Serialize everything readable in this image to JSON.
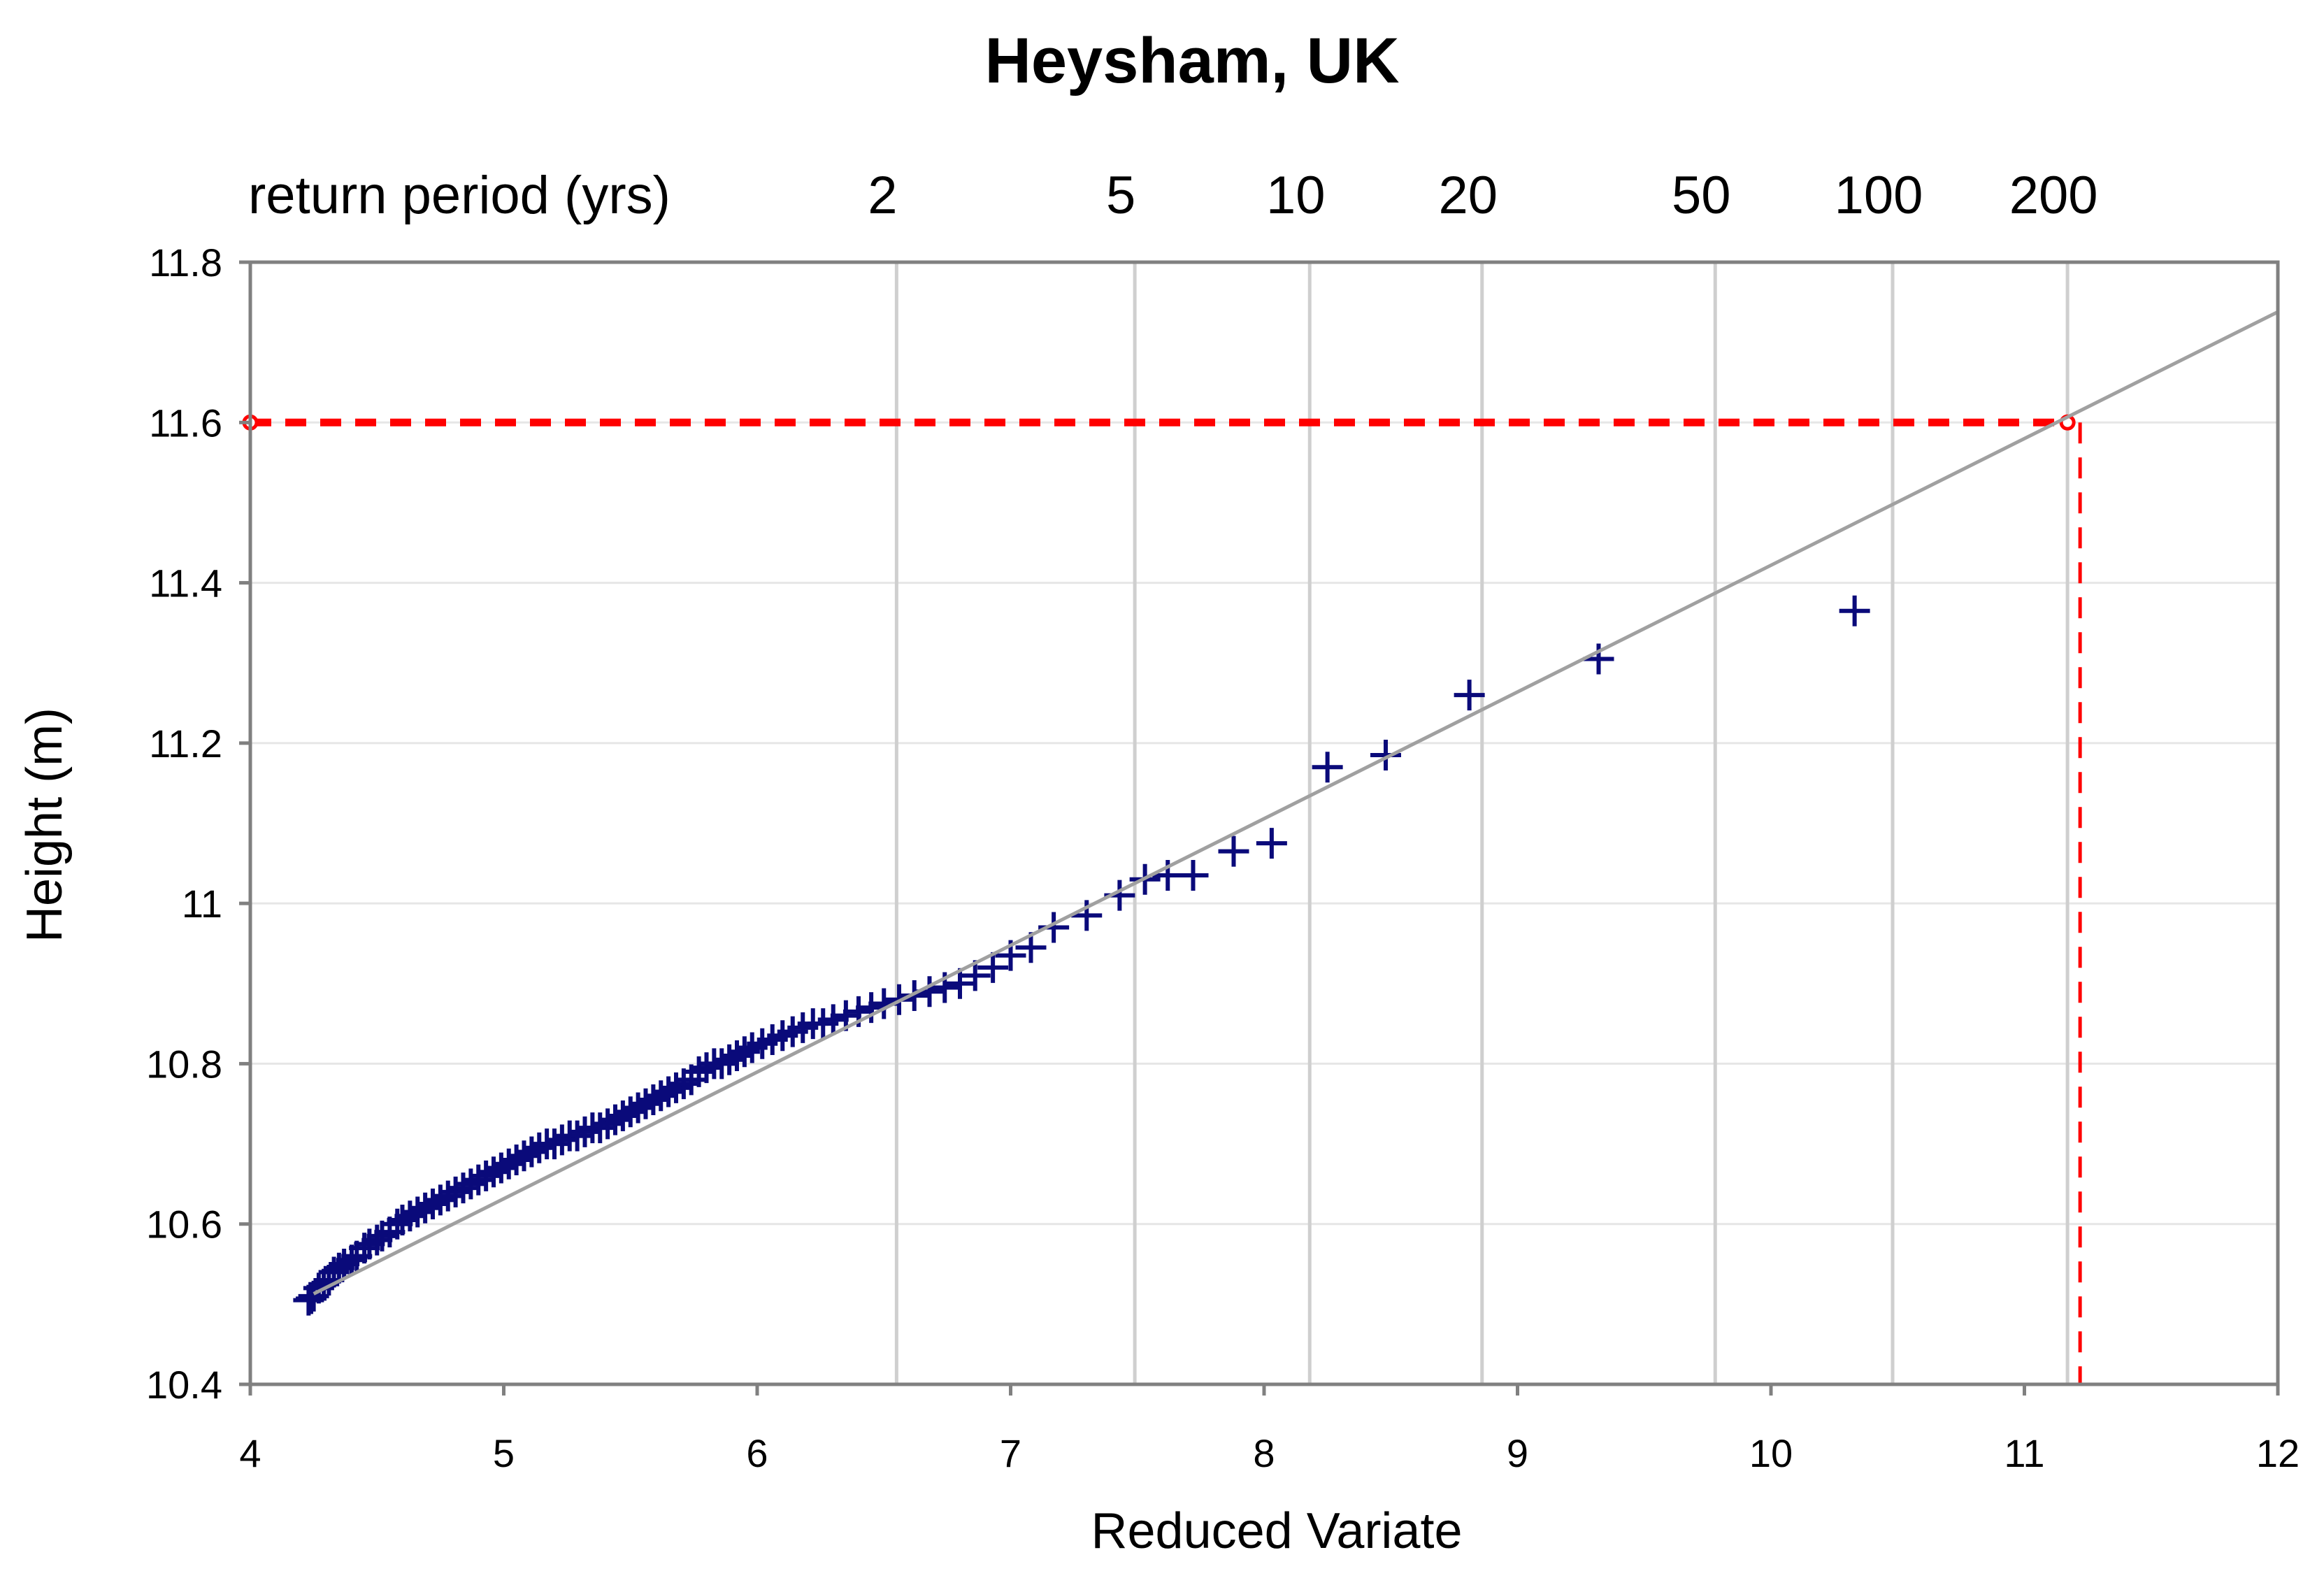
{
  "chart_data": {
    "type": "scatter",
    "title": "Heysham, UK",
    "xlabel": "Reduced Variate",
    "ylabel": "Height (m)",
    "xlim": [
      4,
      12
    ],
    "ylim": [
      10.4,
      11.8
    ],
    "x_ticks": [
      4,
      5,
      6,
      7,
      8,
      9,
      10,
      11,
      12
    ],
    "y_ticks": [
      10.4,
      10.6,
      10.8,
      11,
      11.2,
      11.4,
      11.6,
      11.8
    ],
    "y_tick_labels": [
      "10.4",
      "10.6",
      "10.8",
      "11",
      "11.2",
      "11.4",
      "11.6",
      "11.8"
    ],
    "grid": "horizontal major gridlines",
    "legend": "none",
    "colors": {
      "points": "#0a0a7a",
      "fit_line": "#a0a0a0",
      "return_lines": "#cfcfcf",
      "design_level": "#ff0000",
      "axes": "#808080"
    },
    "return_period": {
      "label": "return period (yrs)",
      "marks": [
        {
          "label": "2",
          "x": 6.55
        },
        {
          "label": "5",
          "x": 7.49
        },
        {
          "label": "10",
          "x": 8.18
        },
        {
          "label": "20",
          "x": 8.86
        },
        {
          "label": "50",
          "x": 9.78
        },
        {
          "label": "100",
          "x": 10.48
        },
        {
          "label": "200",
          "x": 11.17
        }
      ]
    },
    "fit_line": {
      "x": [
        4.25,
        12
      ],
      "y": [
        10.513,
        11.738
      ]
    },
    "design_level": {
      "height": 11.6,
      "reduced_variate": 11.17
    },
    "series": [
      {
        "x": [
          4.23,
          4.24,
          4.25,
          4.27,
          4.29,
          4.31,
          4.33,
          4.35,
          4.37,
          4.4,
          4.42,
          4.45,
          4.47,
          4.5,
          4.52,
          4.55,
          4.58,
          4.6,
          4.63,
          4.66,
          4.69,
          4.72,
          4.75,
          4.78,
          4.81,
          4.84,
          4.87,
          4.9,
          4.93,
          4.96,
          4.99,
          5.02,
          5.05,
          5.08,
          5.11,
          5.14,
          5.17,
          5.2,
          5.23,
          5.26,
          5.29,
          5.32,
          5.35,
          5.38,
          5.41,
          5.44,
          5.47,
          5.5,
          5.53,
          5.56,
          5.59,
          5.62,
          5.65,
          5.68,
          5.71,
          5.74,
          5.77,
          5.8,
          5.83,
          5.86,
          5.89,
          5.92,
          5.95,
          5.98,
          6.02,
          6.06,
          6.1,
          6.14,
          6.18,
          6.22,
          6.26,
          6.3,
          6.35,
          6.4,
          6.45,
          6.5,
          6.56,
          6.62,
          6.68,
          6.74,
          6.8,
          6.86,
          6.93,
          7.0,
          7.08,
          7.17,
          7.3,
          7.43,
          7.53,
          7.62,
          7.72,
          7.88,
          8.03,
          8.25,
          8.48,
          8.81,
          9.32,
          10.33
        ],
        "y": [
          10.505,
          10.507,
          10.51,
          10.52,
          10.525,
          10.53,
          10.54,
          10.545,
          10.55,
          10.555,
          10.56,
          10.57,
          10.575,
          10.58,
          10.585,
          10.59,
          10.6,
          10.605,
          10.61,
          10.615,
          10.62,
          10.625,
          10.63,
          10.635,
          10.64,
          10.645,
          10.65,
          10.655,
          10.66,
          10.665,
          10.67,
          10.675,
          10.68,
          10.685,
          10.69,
          10.695,
          10.7,
          10.7,
          10.705,
          10.71,
          10.71,
          10.715,
          10.72,
          10.72,
          10.725,
          10.73,
          10.735,
          10.74,
          10.745,
          10.75,
          10.755,
          10.76,
          10.765,
          10.77,
          10.775,
          10.78,
          10.79,
          10.795,
          10.8,
          10.8,
          10.805,
          10.81,
          10.815,
          10.82,
          10.825,
          10.83,
          10.835,
          10.84,
          10.845,
          10.85,
          10.85,
          10.855,
          10.86,
          10.865,
          10.87,
          10.875,
          10.88,
          10.885,
          10.89,
          10.895,
          10.9,
          10.91,
          10.92,
          10.935,
          10.945,
          10.97,
          10.985,
          11.01,
          11.03,
          11.035,
          11.035,
          11.065,
          11.075,
          11.17,
          11.185,
          11.26,
          11.305,
          11.365
        ]
      }
    ]
  }
}
